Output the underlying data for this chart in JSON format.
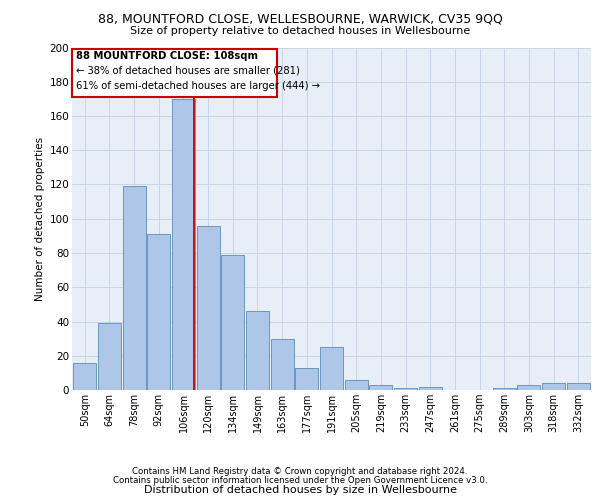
{
  "title_line1": "88, MOUNTFORD CLOSE, WELLESBOURNE, WARWICK, CV35 9QQ",
  "title_line2": "Size of property relative to detached houses in Wellesbourne",
  "xlabel": "Distribution of detached houses by size in Wellesbourne",
  "ylabel": "Number of detached properties",
  "footer_line1": "Contains HM Land Registry data © Crown copyright and database right 2024.",
  "footer_line2": "Contains public sector information licensed under the Open Government Licence v3.0.",
  "categories": [
    "50sqm",
    "64sqm",
    "78sqm",
    "92sqm",
    "106sqm",
    "120sqm",
    "134sqm",
    "149sqm",
    "163sqm",
    "177sqm",
    "191sqm",
    "205sqm",
    "219sqm",
    "233sqm",
    "247sqm",
    "261sqm",
    "275sqm",
    "289sqm",
    "303sqm",
    "318sqm",
    "332sqm"
  ],
  "values": [
    16,
    39,
    119,
    91,
    170,
    96,
    79,
    46,
    30,
    13,
    25,
    6,
    3,
    1,
    2,
    0,
    0,
    1,
    3,
    4,
    4
  ],
  "bar_color": "#aec6e8",
  "bar_edge_color": "#5b8db8",
  "annotation_text_line1": "88 MOUNTFORD CLOSE: 108sqm",
  "annotation_text_line2": "← 38% of detached houses are smaller (281)",
  "annotation_text_line3": "61% of semi-detached houses are larger (444) →",
  "red_line_color": "#cc0000",
  "annotation_box_color": "#ffffff",
  "annotation_box_edge": "#cc0000",
  "grid_color": "#c8d4e8",
  "background_color": "#e8eef8",
  "ylim": [
    0,
    200
  ],
  "yticks": [
    0,
    20,
    40,
    60,
    80,
    100,
    120,
    140,
    160,
    180,
    200
  ]
}
